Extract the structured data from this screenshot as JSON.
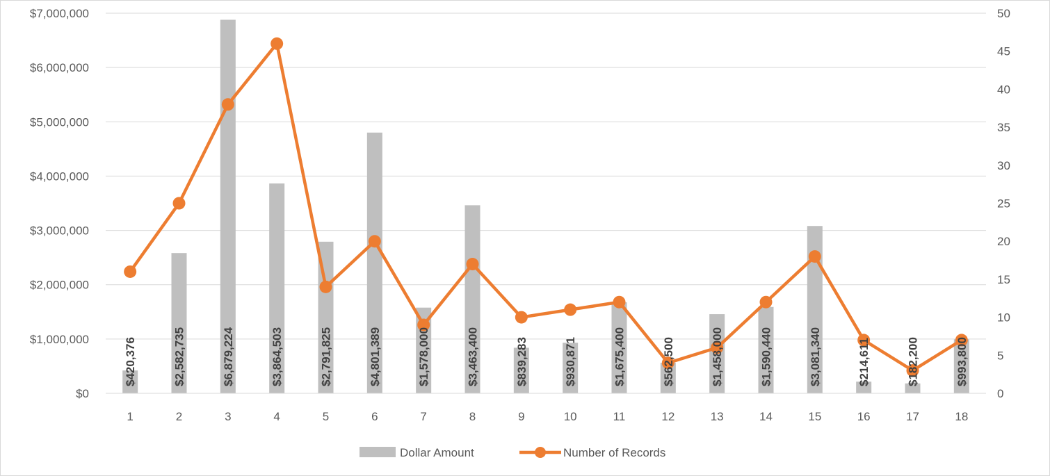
{
  "chart_data": {
    "type": "bar",
    "categories": [
      "1",
      "2",
      "3",
      "4",
      "5",
      "6",
      "7",
      "8",
      "9",
      "10",
      "11",
      "12",
      "13",
      "14",
      "15",
      "16",
      "17",
      "18"
    ],
    "series": [
      {
        "name": "Dollar Amount",
        "type": "bar",
        "axis": "left",
        "values": [
          420376,
          2582735,
          6879224,
          3864503,
          2791825,
          4801389,
          1578000,
          3463400,
          839283,
          930871,
          1675400,
          562500,
          1458000,
          1590440,
          3081340,
          214611,
          182200,
          993800
        ],
        "labels": [
          "$420,376",
          "$2,582,735",
          "$6,879,224",
          "$3,864,503",
          "$2,791,825",
          "$4,801,389",
          "$1,578,000",
          "$3,463,400",
          "$839,283",
          "$930,871",
          "$1,675,400",
          "$562,500",
          "$1,458,000",
          "$1,590,440",
          "$3,081,340",
          "$214,611",
          "$182,200",
          "$993,800"
        ]
      },
      {
        "name": "Number of Records",
        "type": "line",
        "axis": "right",
        "values": [
          16,
          25,
          38,
          46,
          14,
          20,
          9,
          17,
          10,
          11,
          12,
          4,
          6,
          12,
          18,
          7,
          3,
          7
        ]
      }
    ],
    "ylim": [
      0,
      7000000
    ],
    "y2lim": [
      0,
      50
    ],
    "y_ticks": [
      "$0",
      "$1,000,000",
      "$2,000,000",
      "$3,000,000",
      "$4,000,000",
      "$5,000,000",
      "$6,000,000",
      "$7,000,000"
    ],
    "y2_ticks": [
      "0",
      "5",
      "10",
      "15",
      "20",
      "25",
      "30",
      "35",
      "40",
      "45",
      "50"
    ],
    "grid": true,
    "legend_position": "bottom",
    "colors": {
      "bar": "#bfbfbf",
      "line": "#ed7d31",
      "grid": "#d9d9d9",
      "text": "#595959",
      "label": "#404040"
    }
  }
}
